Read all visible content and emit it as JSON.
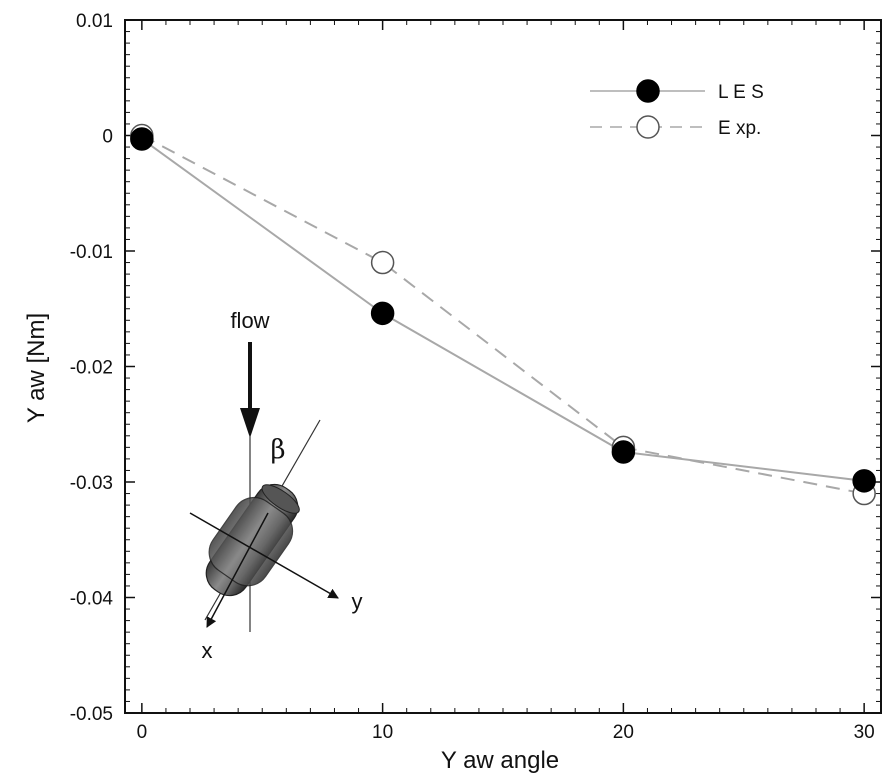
{
  "chart_data": {
    "type": "line",
    "xlabel": "Y aw angle",
    "ylabel": "Y aw [Nm]",
    "xlim": [
      -0.7,
      30.7
    ],
    "ylim": [
      -0.05,
      0.01
    ],
    "xticks": [
      0,
      10,
      20,
      30
    ],
    "yticks": [
      0.01,
      0,
      -0.01,
      -0.02,
      -0.03,
      -0.04,
      -0.05
    ],
    "ytick_labels": [
      "0.01",
      "0",
      "-0.01",
      "-0.02",
      "-0.03",
      "-0.04",
      "-0.05"
    ],
    "legend_position": "top-right",
    "series": [
      {
        "name": "L E S",
        "x": [
          0,
          10,
          20,
          30
        ],
        "values": [
          -0.0003,
          -0.0154,
          -0.0274,
          -0.0299
        ],
        "style": "solid",
        "marker": "filled-circle",
        "color": "#a8a8a8"
      },
      {
        "name": "E xp.",
        "x": [
          0,
          10,
          20,
          30
        ],
        "values": [
          0.0,
          -0.011,
          -0.027,
          -0.031
        ],
        "style": "dashed",
        "marker": "open-circle",
        "color": "#a8a8a8"
      }
    ],
    "inset": {
      "flow_label": "flow",
      "beta_label": "β",
      "x_axis_label": "x",
      "y_axis_label": "y"
    }
  }
}
